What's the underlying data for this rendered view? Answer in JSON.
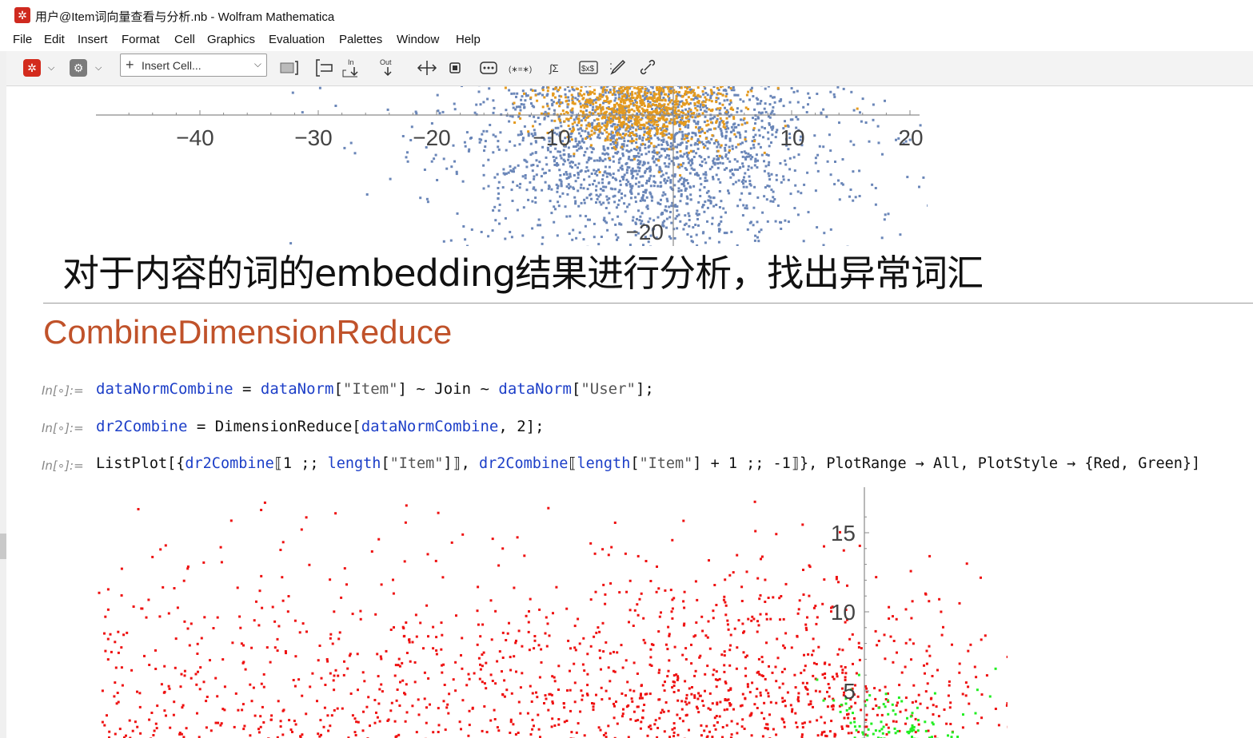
{
  "window": {
    "title": "用户@Item词向量查看与分析.nb - Wolfram Mathematica"
  },
  "menu": [
    "File",
    "Edit",
    "Insert",
    "Format",
    "Cell",
    "Graphics",
    "Evaluation",
    "Palettes",
    "Window",
    "Help"
  ],
  "toolbar": {
    "insert_cell_label": "Insert Cell..."
  },
  "top_plot_ticks": {
    "x": [
      "−40",
      "−30",
      "−20",
      "−10",
      "10",
      "20"
    ],
    "y": [
      "−20"
    ]
  },
  "text_cell": "对于内容的词的embedding结果进行分析，找出异常词汇",
  "section_title": "CombineDimensionReduce",
  "input_label": "In[∘]:=",
  "inputs": [
    [
      {
        "t": "dataNormCombine",
        "c": "blue"
      },
      {
        "t": " = ",
        "c": "blk"
      },
      {
        "t": "dataNorm",
        "c": "blue"
      },
      {
        "t": "[",
        "c": "blk"
      },
      {
        "t": "\"Item\"",
        "c": "str"
      },
      {
        "t": "] ~ Join ~ ",
        "c": "blk"
      },
      {
        "t": "dataNorm",
        "c": "blue"
      },
      {
        "t": "[",
        "c": "blk"
      },
      {
        "t": "\"User\"",
        "c": "str"
      },
      {
        "t": "];",
        "c": "blk"
      }
    ],
    [
      {
        "t": "dr2Combine",
        "c": "blue"
      },
      {
        "t": " = DimensionReduce[",
        "c": "blk"
      },
      {
        "t": "dataNormCombine",
        "c": "blue"
      },
      {
        "t": ", 2];",
        "c": "blk"
      }
    ],
    [
      {
        "t": "ListPlot[{",
        "c": "blk"
      },
      {
        "t": "dr2Combine",
        "c": "blue"
      },
      {
        "t": "⟦1 ;; ",
        "c": "blk"
      },
      {
        "t": "length",
        "c": "blue"
      },
      {
        "t": "[",
        "c": "blk"
      },
      {
        "t": "\"Item\"",
        "c": "str"
      },
      {
        "t": "]⟧, ",
        "c": "blk"
      },
      {
        "t": "dr2Combine",
        "c": "blue"
      },
      {
        "t": "⟦",
        "c": "blk"
      },
      {
        "t": "length",
        "c": "blue"
      },
      {
        "t": "[",
        "c": "blk"
      },
      {
        "t": "\"Item\"",
        "c": "str"
      },
      {
        "t": "] + 1 ;; -1⟧}, PlotRange → All, PlotStyle → {Red, Green}]",
        "c": "blk"
      }
    ]
  ],
  "bottom_plot_ticks": {
    "y": [
      "15",
      "10",
      "5"
    ]
  },
  "colors": {
    "blue_points": "#6a86b8",
    "orange_points": "#e49a1f",
    "red_points": "#ee1111",
    "green_points": "#22ee22",
    "section": "#c0522a",
    "code_blue": "#1d3fc8"
  },
  "chart_data": [
    {
      "type": "scatter",
      "title": "",
      "xlabel": "",
      "ylabel": "",
      "xlim": [
        -48,
        21
      ],
      "x_ticks": [
        -40,
        -30,
        -20,
        -10,
        10,
        20
      ],
      "y_ticks": [
        -20
      ],
      "series": [
        {
          "color": "#6a86b8",
          "cluster": {
            "cx": -2,
            "cy": -2,
            "sx": 7,
            "sy": 6,
            "n": 2600
          }
        },
        {
          "color": "#e49a1f",
          "cluster": {
            "cx": -3,
            "cy": 1,
            "sx": 4,
            "sy": 2,
            "n": 1000
          }
        }
      ]
    },
    {
      "type": "scatter",
      "title": "",
      "xlabel": "",
      "ylabel": "",
      "y_ticks": [
        5,
        10,
        15
      ],
      "series": [
        {
          "color": "#ee1111",
          "cluster": {
            "cx": -30,
            "cy": 2,
            "sx": 16,
            "sy": 6,
            "n": 3000
          }
        },
        {
          "color": "#22ee22",
          "cluster": {
            "cx": 1.5,
            "cy": 0.5,
            "sx": 2,
            "sy": 2.2,
            "n": 400
          }
        }
      ]
    }
  ]
}
